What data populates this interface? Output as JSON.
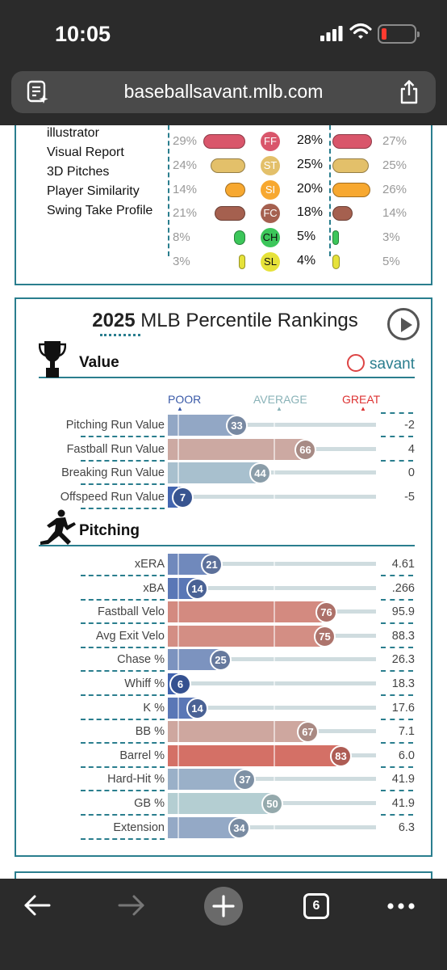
{
  "status_bar": {
    "time": "10:05"
  },
  "url_bar": {
    "url": "baseballsavant.mlb.com"
  },
  "menu_links": [
    "illustrator",
    "Visual Report",
    "3D Pitches",
    "Player Similarity",
    "Swing Take Profile"
  ],
  "arsenal": {
    "rows": [
      {
        "code": "FF",
        "left_pct": "29%",
        "mid_pct": "28%",
        "right_pct": "27%",
        "color": "#d9566b",
        "badge_text": "#ffffff",
        "left_usage": 29,
        "right_usage": 27
      },
      {
        "code": "ST",
        "left_pct": "24%",
        "mid_pct": "25%",
        "right_pct": "25%",
        "color": "#e3c06a",
        "badge_text": "#ffffff",
        "left_usage": 24,
        "right_usage": 25
      },
      {
        "code": "SI",
        "left_pct": "14%",
        "mid_pct": "20%",
        "right_pct": "26%",
        "color": "#f7a830",
        "badge_text": "#ffffff",
        "left_usage": 14,
        "right_usage": 26
      },
      {
        "code": "FC",
        "left_pct": "21%",
        "mid_pct": "18%",
        "right_pct": "14%",
        "color": "#a5604f",
        "badge_text": "#ffffff",
        "left_usage": 21,
        "right_usage": 14
      },
      {
        "code": "CH",
        "left_pct": "8%",
        "mid_pct": "5%",
        "right_pct": "3%",
        "color": "#3cc65a",
        "badge_text": "#111111",
        "left_usage": 8,
        "right_usage": 3
      },
      {
        "code": "SL",
        "left_pct": "3%",
        "mid_pct": "4%",
        "right_pct": "5%",
        "color": "#e6e23a",
        "badge_text": "#111111",
        "left_usage": 3,
        "right_usage": 5
      }
    ]
  },
  "percentile": {
    "title_year": "2025",
    "title_rest": "MLB Percentile Rankings",
    "scale": {
      "poor": "POOR",
      "average": "AVERAGE",
      "great": "GREAT"
    },
    "value_section": {
      "label": "Value",
      "brand": "savant",
      "metrics": [
        {
          "label": "Pitching Run Value",
          "percentile": 33,
          "value": "-2"
        },
        {
          "label": "Fastball Run Value",
          "percentile": 66,
          "value": "4"
        },
        {
          "label": "Breaking Run Value",
          "percentile": 44,
          "value": "0"
        },
        {
          "label": "Offspeed Run Value",
          "percentile": 7,
          "value": "-5"
        }
      ]
    },
    "pitching_section": {
      "label": "Pitching",
      "metrics": [
        {
          "label": "xERA",
          "percentile": 21,
          "value": "4.61"
        },
        {
          "label": "xBA",
          "percentile": 14,
          "value": ".266"
        },
        {
          "label": "Fastball Velo",
          "percentile": 76,
          "value": "95.9"
        },
        {
          "label": "Avg Exit Velo",
          "percentile": 75,
          "value": "88.3"
        },
        {
          "label": "Chase %",
          "percentile": 25,
          "value": "26.3"
        },
        {
          "label": "Whiff %",
          "percentile": 6,
          "value": "18.3"
        },
        {
          "label": "K %",
          "percentile": 14,
          "value": "17.6"
        },
        {
          "label": "BB %",
          "percentile": 67,
          "value": "7.1"
        },
        {
          "label": "Barrel %",
          "percentile": 83,
          "value": "6.0"
        },
        {
          "label": "Hard-Hit %",
          "percentile": 37,
          "value": "41.9"
        },
        {
          "label": "GB %",
          "percentile": 50,
          "value": "41.9"
        },
        {
          "label": "Extension",
          "percentile": 34,
          "value": "6.3"
        }
      ]
    }
  },
  "toolbar": {
    "tab_count": "6"
  }
}
